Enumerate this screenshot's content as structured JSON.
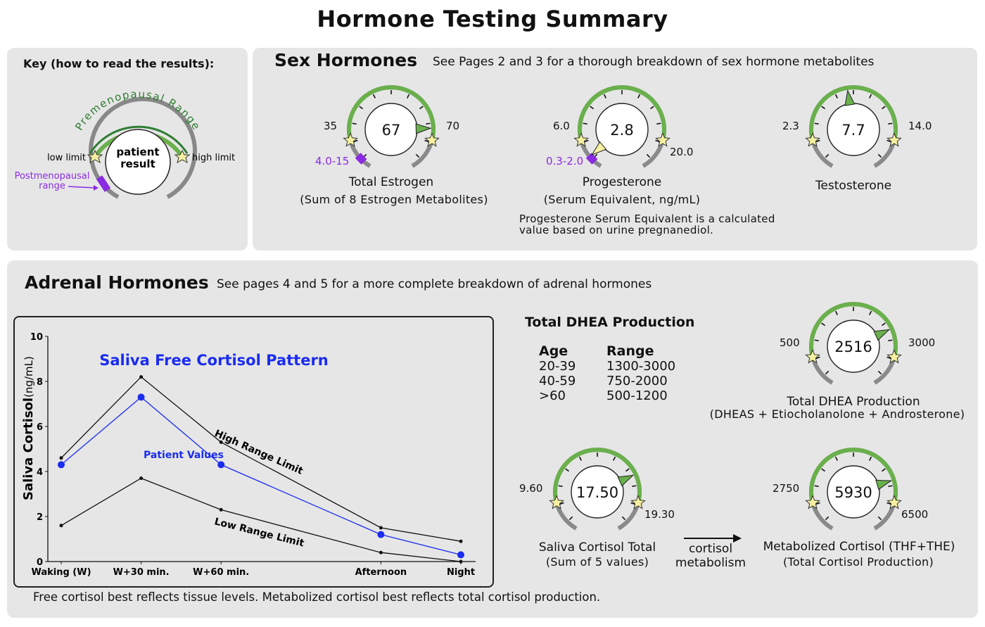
{
  "title": "Hormone Testing Summary",
  "key": {
    "heading": "Key (how to read the results):",
    "arc_label": "Premenopausal Range",
    "low_limit": "low limit",
    "high_limit": "high limit",
    "center_line1": "patient",
    "center_line2": "result",
    "post_line1": "Postmenopausal",
    "post_line2": "range"
  },
  "sex": {
    "heading": "Sex Hormones",
    "subheading": "See Pages 2 and 3 for a thorough breakdown of sex hormone metabolites",
    "estrogen": {
      "value": "67",
      "low": "35",
      "high": "70",
      "post": "4.0-15",
      "label": "Total Estrogen",
      "sub": "(Sum of 8 Estrogen Metabolites)",
      "fraction": 0.92
    },
    "progesterone": {
      "value": "2.8",
      "low": "6.0",
      "high": "20.0",
      "post": "0.3-2.0",
      "label": "Progesterone",
      "sub": "(Serum Equivalent, ng/mL)",
      "fraction": -0.12,
      "note_line1": "Progesterone Serum Equivalent is a calculated",
      "note_line2": "value based on urine pregnanediol."
    },
    "testosterone": {
      "value": "7.7",
      "low": "2.3",
      "high": "14.0",
      "label": "Testosterone",
      "fraction": 0.46
    }
  },
  "adrenal": {
    "heading": "Adrenal Hormones",
    "subheading": "See pages 4 and 5 for a more complete breakdown of adrenal hormones",
    "footer": "Free cortisol best reflects tissue levels. Metabolized cortisol best reflects total cortisol production.",
    "dhea_table": {
      "title": "Total DHEA Production",
      "age_header": "Age",
      "range_header": "Range",
      "rows": [
        {
          "age": "20-39",
          "range": "1300-3000"
        },
        {
          "age": "40-59",
          "range": "750-2000"
        },
        {
          "age": ">60",
          "range": "500-1200"
        }
      ]
    },
    "dhea_gauge": {
      "value": "2516",
      "low": "500",
      "high": "3000",
      "label": "Total DHEA Production",
      "sub": "(DHEAS + Etiocholanolone + Androsterone)",
      "fraction": 0.81
    },
    "saliva_gauge": {
      "value": "17.50",
      "low": "9.60",
      "high": "19.30",
      "label": "Saliva Cortisol Total",
      "sub": "(Sum of 5 values)",
      "fraction": 0.81
    },
    "metab_gauge": {
      "value": "5930",
      "low": "2750",
      "high": "6500",
      "label": "Metabolized Cortisol (THF+THE)",
      "sub": "(Total Cortisol Production)",
      "fraction": 0.85
    },
    "arrow_line1": "cortisol",
    "arrow_line2": "metabolism"
  },
  "colors": {
    "panel": "#e6e6e6",
    "range_green": "#6ab04c",
    "dark_green": "#2e7d32",
    "purple": "#8a2be2",
    "patient_blue": "#1a2cf0",
    "star_fill": "#f5f0a0",
    "pointer_green": "#6ab04c",
    "pointer_yellow": "#f5f0a0"
  },
  "chart_data": {
    "type": "line",
    "title": "Saliva Free Cortisol Pattern",
    "ylabel_bold": "Saliva Cortisol",
    "ylabel_unit": "(ng/mL)",
    "xlabel": "",
    "categories": [
      "Waking (W)",
      "W+30 min.",
      "W+60 min.",
      "Afternoon",
      "Night"
    ],
    "x": [
      0,
      1,
      2,
      4,
      5
    ],
    "ylim": [
      0,
      10
    ],
    "yticks": [
      "0",
      "2",
      "4",
      "6",
      "8",
      "10"
    ],
    "series": [
      {
        "name": "High Range Limit",
        "values": [
          4.6,
          8.2,
          5.3,
          1.5,
          0.9
        ]
      },
      {
        "name": "Patient Values",
        "values": [
          4.3,
          7.3,
          4.3,
          1.2,
          0.3
        ]
      },
      {
        "name": "Low Range Limit",
        "values": [
          1.6,
          3.7,
          2.3,
          0.4,
          0.0
        ]
      }
    ]
  }
}
